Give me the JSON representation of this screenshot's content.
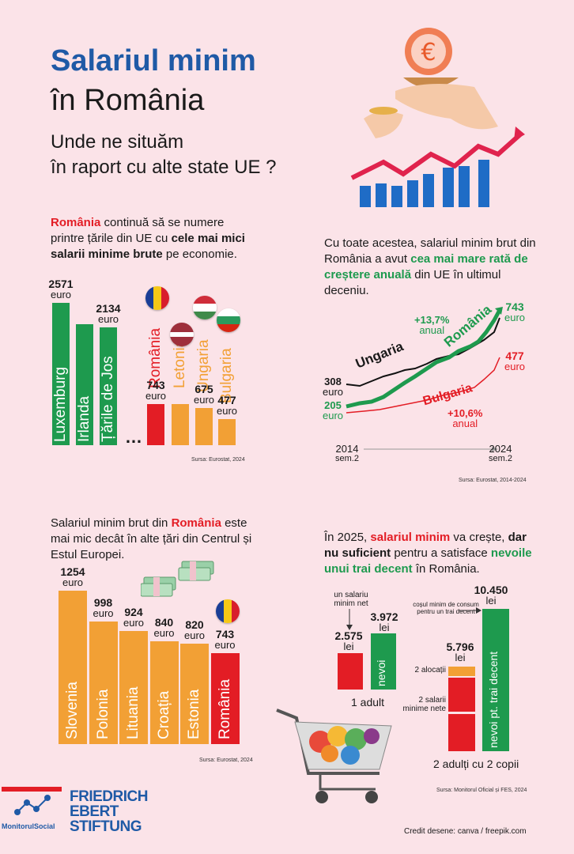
{
  "title": {
    "line1": "Salariul minim",
    "line2": "în România",
    "subtitle1": "Unde ne situăm",
    "subtitle2": "în raport cu alte state UE ?"
  },
  "section1": {
    "text": {
      "p1": "România",
      "p2": " continuă să se numere printre țările din UE cu ",
      "p3": "cele mai mici salarii minime brute",
      "p4": " pe economie."
    },
    "ellipsis": "…",
    "source": "Sursa: Eurostat, 2024"
  },
  "section2": {
    "text": {
      "p1": "Cu toate acestea, salariul minim brut din România a avut ",
      "p2": "cea mai mare rată de creștere anuală",
      "p3": " din UE în ultimul deceniu."
    },
    "source": "Sursa: Eurostat, 2014-2024"
  },
  "section3": {
    "text": {
      "p1": "Salariul minim brut din ",
      "p2": "România",
      "p3": " este mai mic decât în alte țări din Centrul și Estul Europei."
    },
    "source": "Sursa: Eurostat, 2024"
  },
  "section4": {
    "text": {
      "p1": "În 2025, ",
      "p2": "salariul minim",
      "p3": " va crește, ",
      "p4": "dar nu suficient",
      "p5": " pentru a satisface ",
      "p6": "nevoile unui trai decent",
      "p7": " în România."
    },
    "source": "Sursa: Monitorul Oficial și FES, 2024"
  },
  "footer": {
    "credit": "Credit desene: canva / freepik.com",
    "logo1": "MonitorulSocial",
    "logo2a": "FRIEDRICH",
    "logo2b": "EBERT",
    "logo2c": "STIFTUNG"
  },
  "colors": {
    "green": "#1e9a4e",
    "orange": "#f2a035",
    "red": "#e31d25",
    "blue": "#1f5aa6",
    "bg": "#fbe3e8"
  },
  "chart_data": [
    {
      "type": "bar",
      "categories": [
        "Luxemburg",
        "Irlanda",
        "Țările de Jos",
        "România",
        "Letonia",
        "Ungaria",
        "Bulgaria"
      ],
      "values": [
        2571,
        null,
        2134,
        743,
        null,
        675,
        477
      ],
      "value_labels": [
        "2571",
        "",
        "2134",
        "743",
        "",
        "675",
        "477"
      ],
      "unit": "euro"
    },
    {
      "type": "line",
      "x_start": "2014",
      "x_start_sub": "sem.2",
      "x_end": "2024",
      "x_end_sub": "sem.2",
      "series": [
        {
          "name": "Ungaria",
          "start": 308,
          "start_label": "308",
          "start_unit": "euro",
          "color": "#111111"
        },
        {
          "name": "România",
          "start": 205,
          "end": 743,
          "start_label": "205",
          "end_label": "743",
          "unit": "euro",
          "rate": "+13,7%",
          "rate_sub": "anual",
          "color": "#1e9a4e"
        },
        {
          "name": "Bulgaria",
          "end": 477,
          "end_label": "477",
          "unit": "euro",
          "rate": "+10,6%",
          "rate_sub": "anual",
          "color": "#e31d25"
        }
      ]
    },
    {
      "type": "bar",
      "categories": [
        "Slovenia",
        "Polonia",
        "Lituania",
        "Croația",
        "Estonia",
        "România"
      ],
      "values": [
        1254,
        998,
        924,
        840,
        820,
        743
      ],
      "value_labels": [
        "1254",
        "998",
        "924",
        "840",
        "820",
        "743"
      ],
      "unit": "euro"
    },
    {
      "type": "bar",
      "groups": [
        {
          "name": "1 adult",
          "bars": [
            {
              "label": "un salariu minim net",
              "value": 2575,
              "value_label": "2.575",
              "unit": "lei"
            },
            {
              "label": "nevoi",
              "value": 3972,
              "value_label": "3.972",
              "unit": "lei"
            }
          ]
        },
        {
          "name": "2 adulți cu 2 copii",
          "bars": [
            {
              "label": "2 alocații + 2 salarii minime nete",
              "value": 5796,
              "value_label": "5.796",
              "unit": "lei",
              "parts": [
                "2 alocații",
                "2 salarii minime nete"
              ]
            },
            {
              "label": "nevoi pt. trai decent",
              "value": 10450,
              "value_label": "10.450",
              "unit": "lei"
            }
          ]
        }
      ],
      "annotation": "coșul minim de consum pentru un trai decent"
    }
  ]
}
